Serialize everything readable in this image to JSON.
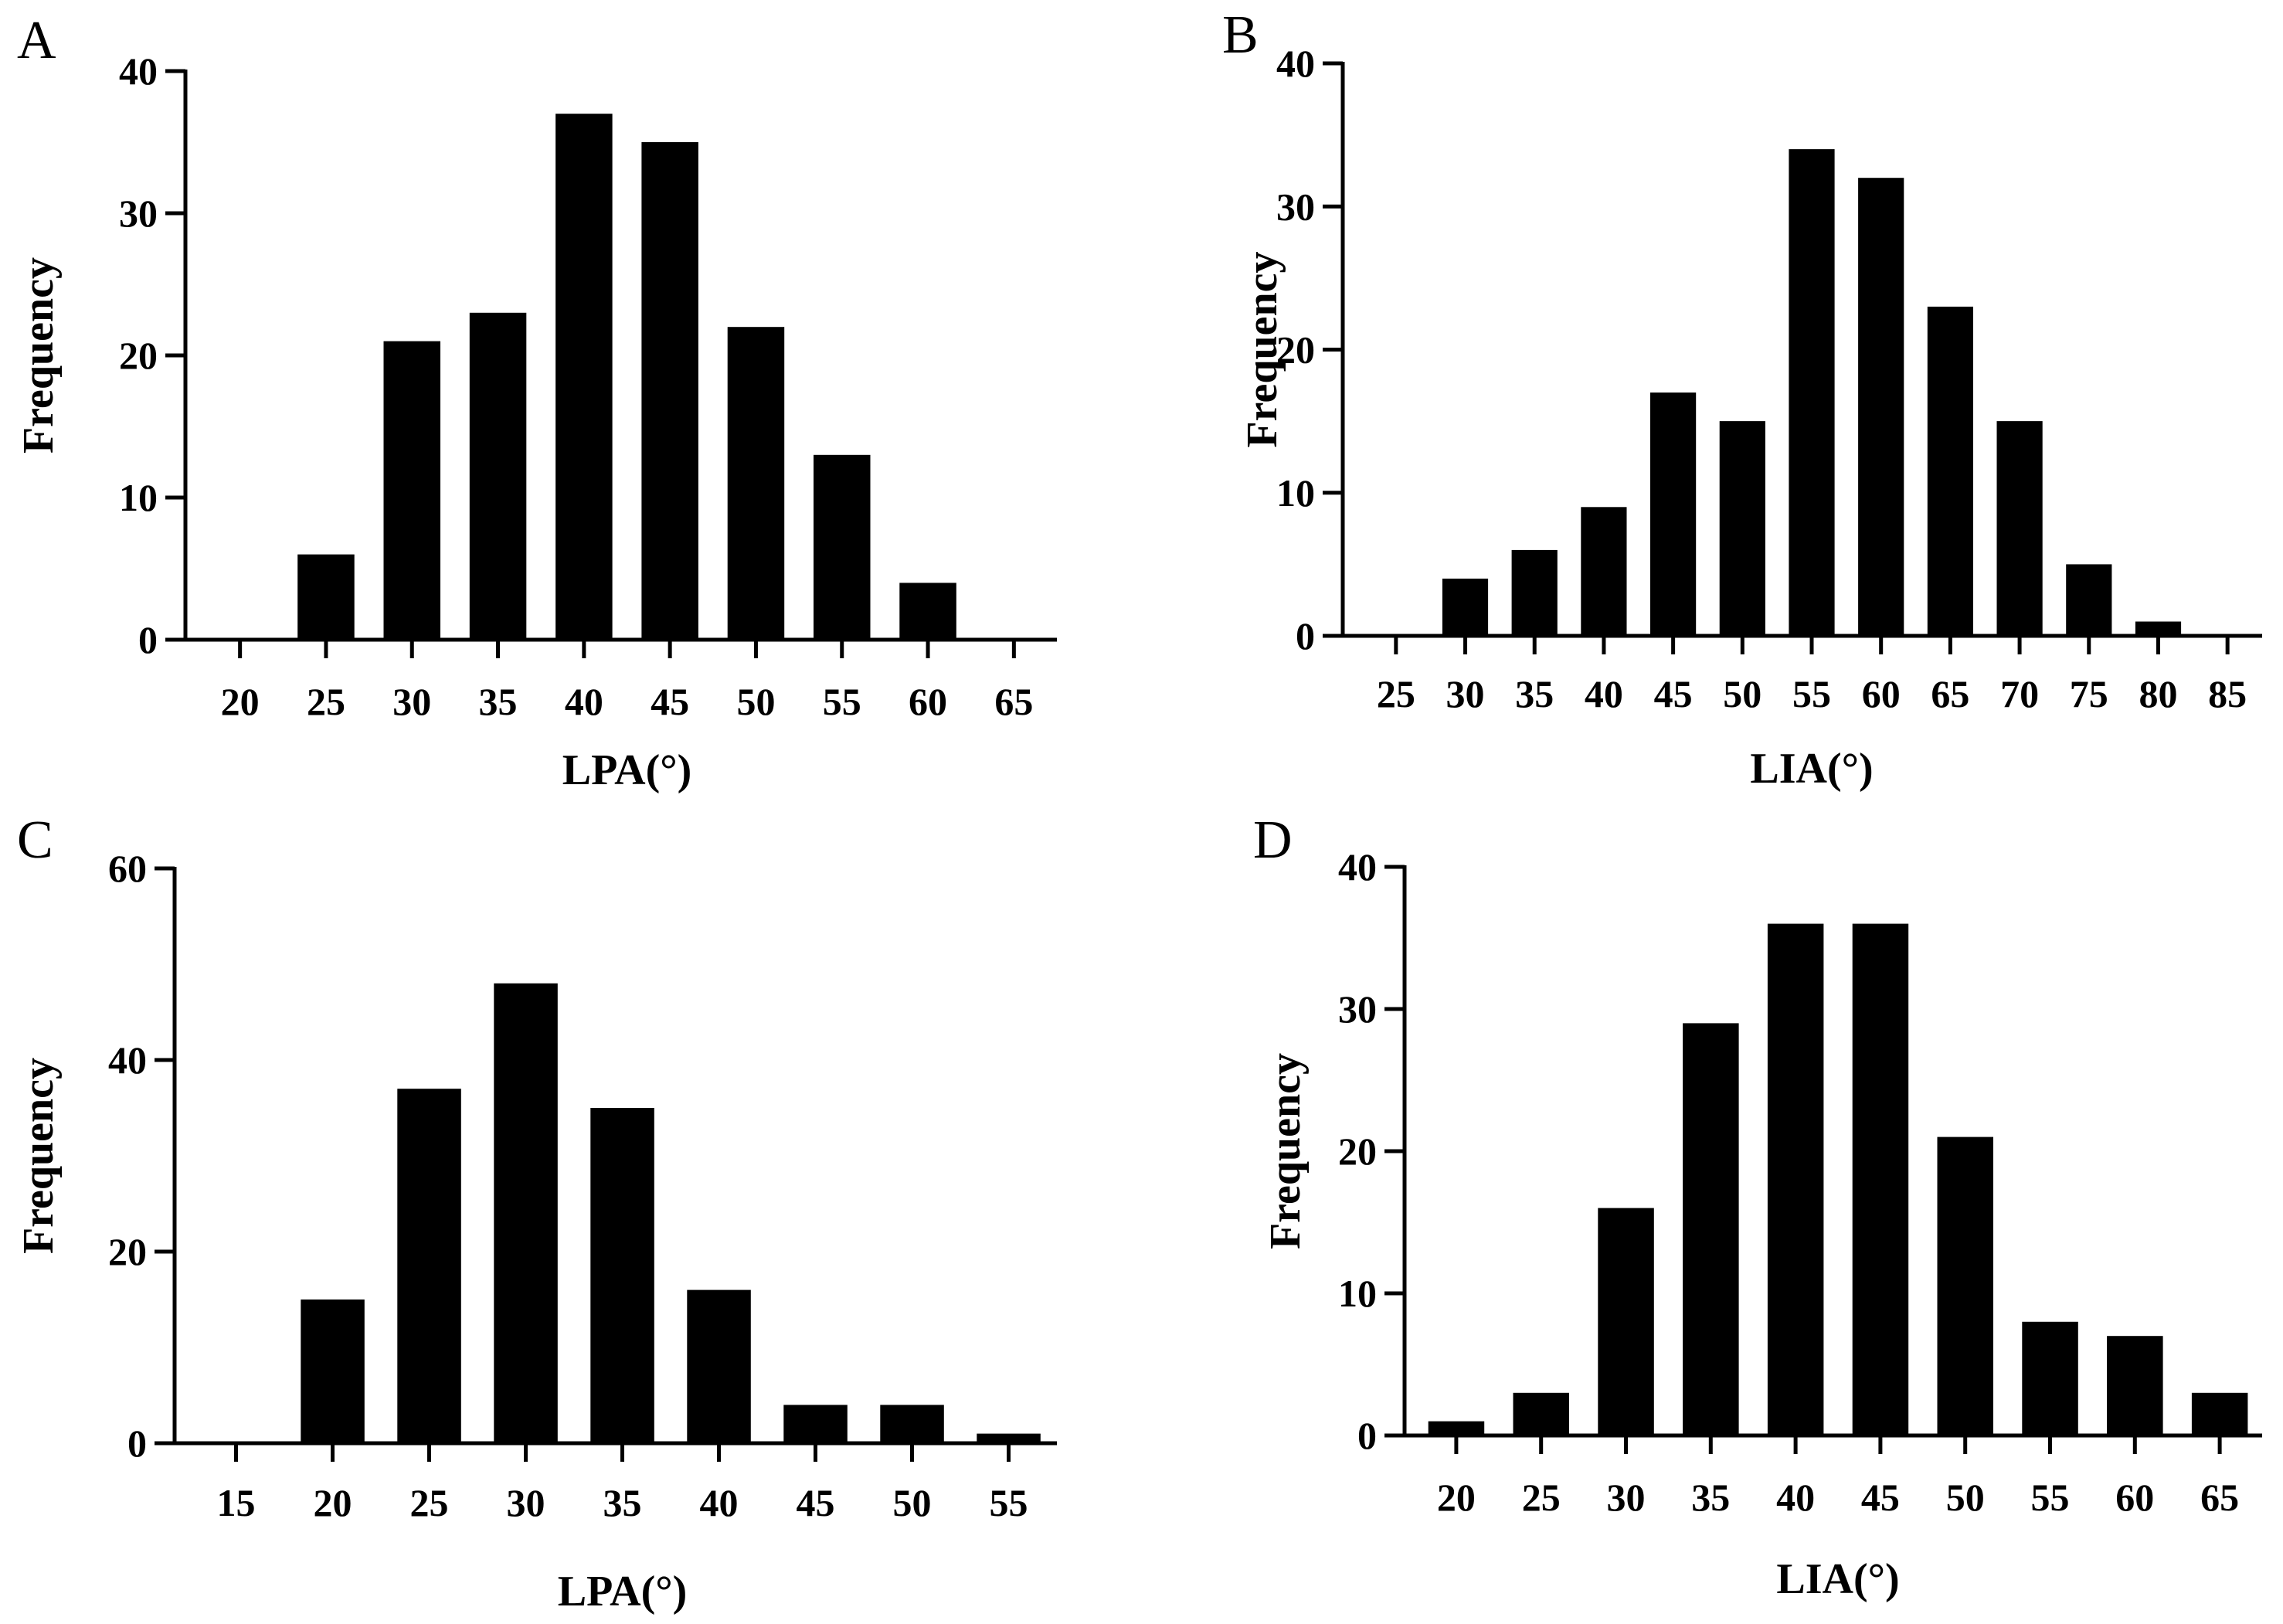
{
  "chart_data": [
    {
      "panel": "A",
      "type": "bar",
      "categories": [
        "20",
        "25",
        "30",
        "35",
        "40",
        "45",
        "50",
        "55",
        "60",
        "65"
      ],
      "values": [
        0,
        6,
        21,
        23,
        37,
        35,
        22,
        13,
        4,
        0
      ],
      "xlabel": "LPA(°)",
      "ylabel": "Frequency",
      "ylim": [
        0,
        40
      ],
      "yticks": [
        "0",
        "10",
        "20",
        "30",
        "40"
      ],
      "bar_color": "#000000"
    },
    {
      "panel": "B",
      "type": "bar",
      "categories": [
        "25",
        "30",
        "35",
        "40",
        "45",
        "50",
        "55",
        "60",
        "65",
        "70",
        "75",
        "80",
        "85"
      ],
      "values": [
        0,
        4,
        6,
        9,
        17,
        15,
        34,
        32,
        23,
        15,
        5,
        1,
        0
      ],
      "xlabel": "LIA(°)",
      "ylabel": "Frequency",
      "ylim": [
        0,
        40
      ],
      "yticks": [
        "0",
        "10",
        "20",
        "30",
        "40"
      ],
      "bar_color": "#000000"
    },
    {
      "panel": "C",
      "type": "bar",
      "categories": [
        "15",
        "20",
        "25",
        "30",
        "35",
        "40",
        "45",
        "50",
        "55"
      ],
      "values": [
        0,
        15,
        37,
        48,
        35,
        16,
        4,
        4,
        1
      ],
      "xlabel": "LPA(°)",
      "ylabel": "Frequency",
      "ylim": [
        0,
        60
      ],
      "yticks": [
        "0",
        "20",
        "40",
        "60"
      ],
      "bar_color": "#000000"
    },
    {
      "panel": "D",
      "type": "bar",
      "categories": [
        "20",
        "25",
        "30",
        "35",
        "40",
        "45",
        "50",
        "55",
        "60",
        "65"
      ],
      "values": [
        1,
        3,
        16,
        29,
        36,
        36,
        21,
        8,
        7,
        3
      ],
      "xlabel": "LIA(°)",
      "ylabel": "Frequency",
      "ylim": [
        0,
        40
      ],
      "yticks": [
        "0",
        "10",
        "20",
        "30",
        "40"
      ],
      "bar_color": "#000000"
    }
  ]
}
